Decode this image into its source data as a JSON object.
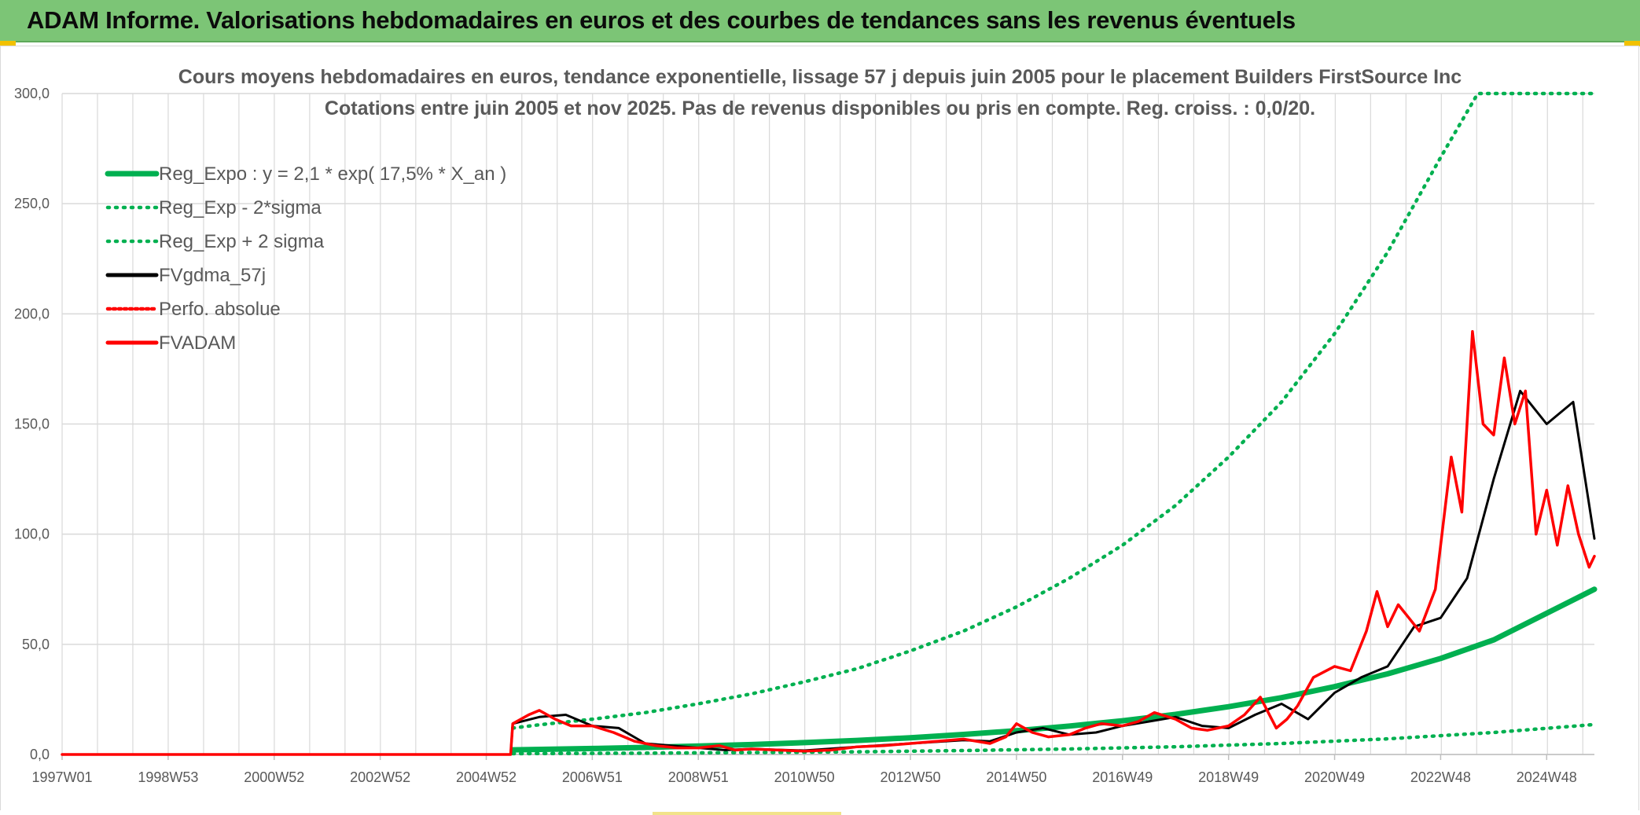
{
  "banner": {
    "title": "ADAM Informe. Valorisations hebdomadaires en euros et des courbes de tendances sans les revenus éventuels"
  },
  "colors": {
    "banner_bg": "#7cc576",
    "green": "#00b050",
    "black": "#000000",
    "red": "#ff0000",
    "grid": "#d9d9d9",
    "text": "#595959"
  },
  "chart_data": {
    "type": "line",
    "title": "Cours moyens hebdomadaires en euros, tendance exponentielle, lissage 57 j depuis juin 2005 pour le placement Builders FirstSource Inc",
    "subtitle": "Cotations entre juin 2005 et nov 2025. Pas de revenus disponibles ou pris en compte. Reg. croiss. : 0,0/20.",
    "xlabel": "",
    "ylabel": "",
    "xlim": [
      1997.0,
      2025.9
    ],
    "ylim": [
      0,
      300
    ],
    "y_ticks": [
      0,
      50,
      100,
      150,
      200,
      250,
      300
    ],
    "y_tick_labels": [
      "0,0",
      "50,0",
      "100,0",
      "150,0",
      "200,0",
      "250,0",
      "300,0"
    ],
    "x_ticks": [
      1997.0,
      1999.0,
      2001.0,
      2003.0,
      2005.0,
      2007.0,
      2009.0,
      2011.0,
      2013.0,
      2015.0,
      2017.0,
      2019.0,
      2021.0,
      2023.0,
      2025.0
    ],
    "x_tick_labels": [
      "1997W01",
      "1998W53",
      "2000W52",
      "2002W52",
      "2004W52",
      "2006W51",
      "2008W51",
      "2010W50",
      "2012W50",
      "2014W50",
      "2016W49",
      "2018W49",
      "2020W49",
      "2022W48",
      "2024W48"
    ],
    "grid": true,
    "legend_position": "top-left",
    "series": [
      {
        "name": "Reg_Expo : y = 2,1 * exp( 17,5% *  X_an )",
        "style": "solid",
        "color": "#00b050",
        "x": [
          2005.5,
          2007.0,
          2008.0,
          2009.0,
          2010.0,
          2011.0,
          2012.0,
          2013.0,
          2014.0,
          2015.0,
          2016.0,
          2017.0,
          2018.0,
          2019.0,
          2020.0,
          2021.0,
          2022.0,
          2023.0,
          2024.0,
          2025.9
        ],
        "values": [
          2.1,
          2.7,
          3.2,
          3.8,
          4.5,
          5.4,
          6.4,
          7.6,
          9.1,
          10.8,
          12.9,
          15.3,
          18.2,
          21.7,
          25.8,
          30.8,
          36.6,
          43.6,
          52.0,
          75.0
        ]
      },
      {
        "name": "Reg_Exp - 2*sigma",
        "style": "dotted",
        "color": "#00b050",
        "x": [
          2005.5,
          2008.0,
          2010.0,
          2012.0,
          2014.0,
          2016.0,
          2018.0,
          2020.0,
          2022.0,
          2024.0,
          2025.9
        ],
        "values": [
          0.4,
          0.6,
          0.9,
          1.2,
          1.8,
          2.5,
          3.5,
          5.0,
          7.1,
          10.0,
          13.6
        ]
      },
      {
        "name": "Reg_Exp + 2 sigma",
        "style": "dotted",
        "color": "#00b050",
        "x": [
          2005.5,
          2006.0,
          2007.0,
          2008.0,
          2009.0,
          2010.0,
          2011.0,
          2012.0,
          2013.0,
          2014.0,
          2015.0,
          2016.0,
          2017.0,
          2018.0,
          2019.0,
          2020.0,
          2021.0,
          2022.0,
          2023.0,
          2023.7,
          2025.9
        ],
        "values": [
          12.0,
          13.5,
          16.0,
          19.0,
          23.0,
          27.5,
          33.0,
          39.0,
          47.0,
          56.0,
          67.0,
          80.0,
          95.0,
          113.0,
          135.0,
          160.0,
          191.0,
          228.0,
          271.0,
          300.0,
          300.0
        ]
      },
      {
        "name": "FVgdma_57j",
        "style": "solid",
        "color": "#000000",
        "x": [
          1997.0,
          2005.46,
          2005.5,
          2006.0,
          2006.5,
          2007.0,
          2007.5,
          2008.0,
          2009.0,
          2009.5,
          2010.0,
          2011.0,
          2012.0,
          2013.0,
          2014.0,
          2014.5,
          2015.0,
          2015.5,
          2016.0,
          2016.5,
          2017.0,
          2017.5,
          2018.0,
          2018.5,
          2019.0,
          2019.5,
          2020.0,
          2020.5,
          2021.0,
          2021.5,
          2022.0,
          2022.5,
          2023.0,
          2023.5,
          2024.0,
          2024.5,
          2025.0,
          2025.5,
          2025.9
        ],
        "values": [
          0,
          0,
          14.0,
          17.0,
          18.0,
          13.0,
          12.0,
          5.0,
          3.0,
          2.0,
          2.5,
          1.8,
          3.5,
          5.0,
          6.5,
          6.0,
          10.0,
          12.0,
          9.0,
          10.0,
          13.0,
          15.0,
          17.0,
          13.0,
          12.0,
          18.0,
          23.0,
          16.0,
          28.0,
          35.0,
          40.0,
          58.0,
          62.0,
          80.0,
          125.0,
          165.0,
          150.0,
          160.0,
          98.0
        ]
      },
      {
        "name": "Perfo. absolue",
        "style": "dotted",
        "color": "#ff0000",
        "x": [],
        "values": []
      },
      {
        "name": "FVADAM",
        "style": "solid",
        "color": "#ff0000",
        "x": [
          1997.0,
          2005.46,
          2005.5,
          2005.8,
          2006.0,
          2006.3,
          2006.6,
          2007.0,
          2007.4,
          2007.8,
          2008.2,
          2008.6,
          2009.0,
          2009.4,
          2009.7,
          2010.0,
          2010.5,
          2011.0,
          2011.5,
          2012.0,
          2012.5,
          2013.0,
          2013.5,
          2014.0,
          2014.5,
          2014.8,
          2015.0,
          2015.3,
          2015.6,
          2016.0,
          2016.3,
          2016.6,
          2017.0,
          2017.3,
          2017.6,
          2018.0,
          2018.3,
          2018.6,
          2019.0,
          2019.3,
          2019.6,
          2019.9,
          2020.1,
          2020.3,
          2020.6,
          2021.0,
          2021.3,
          2021.6,
          2021.8,
          2022.0,
          2022.2,
          2022.4,
          2022.6,
          2022.9,
          2023.2,
          2023.4,
          2023.6,
          2023.8,
          2024.0,
          2024.2,
          2024.4,
          2024.6,
          2024.8,
          2025.0,
          2025.2,
          2025.4,
          2025.6,
          2025.8,
          2025.9
        ],
        "values": [
          0,
          0,
          14.0,
          18.0,
          20.0,
          16.0,
          13.0,
          13.0,
          10.0,
          6.0,
          4.0,
          3.0,
          3.0,
          4.0,
          2.0,
          2.5,
          2.0,
          1.5,
          2.0,
          3.5,
          4.0,
          5.0,
          6.0,
          7.0,
          5.0,
          8.0,
          14.0,
          10.0,
          8.0,
          9.0,
          12.0,
          14.0,
          13.0,
          15.0,
          19.0,
          16.0,
          12.0,
          11.0,
          13.0,
          18.0,
          26.0,
          12.0,
          16.0,
          22.0,
          35.0,
          40.0,
          38.0,
          56.0,
          74.0,
          58.0,
          68.0,
          62.0,
          56.0,
          75.0,
          135.0,
          110.0,
          192.0,
          150.0,
          145.0,
          180.0,
          150.0,
          165.0,
          100.0,
          120.0,
          95.0,
          122.0,
          100.0,
          85.0,
          90.0
        ]
      }
    ]
  }
}
